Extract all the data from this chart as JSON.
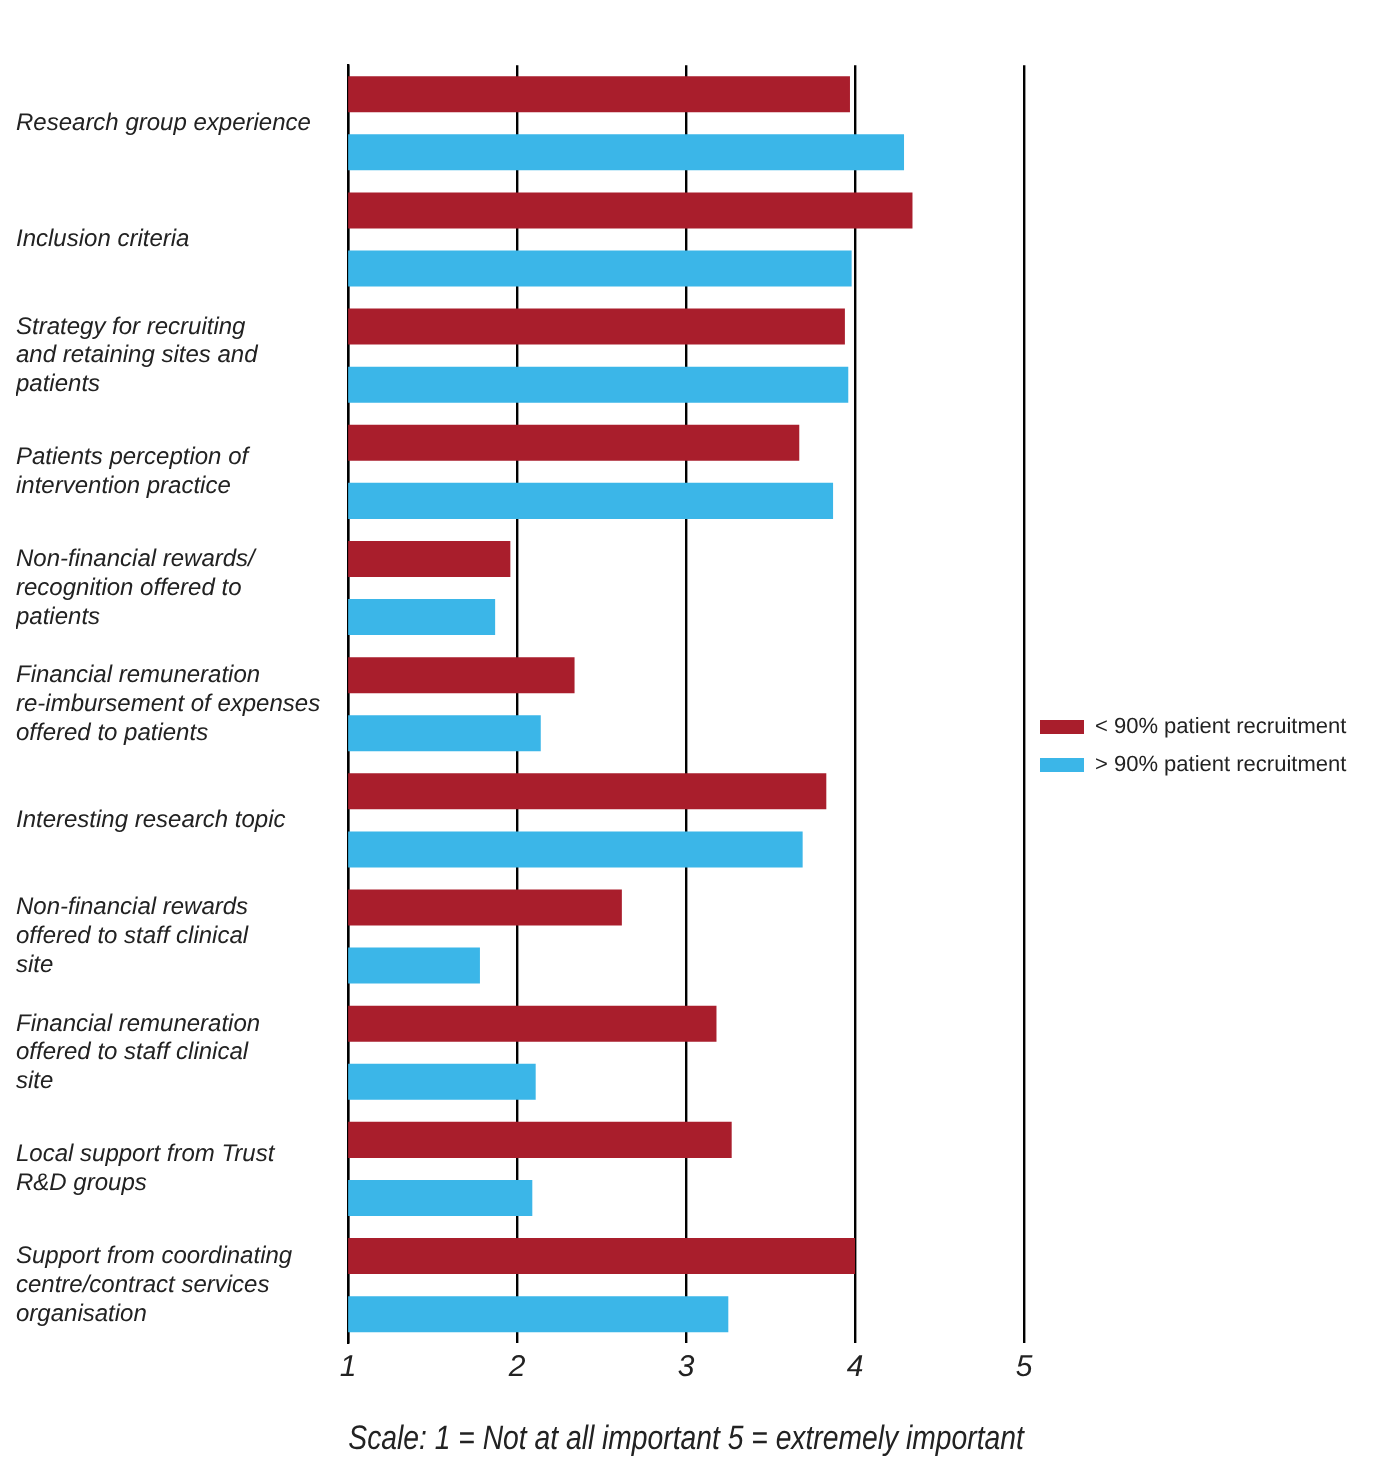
{
  "chart_data": {
    "type": "bar",
    "orientation": "horizontal",
    "xlabel": "Scale: 1 = Not at all important 5 = extremely important",
    "categories": [
      "Research group experience",
      "Inclusion criteria",
      "Strategy for recruiting and retaining sites and patients",
      "Patients perception of intervention practice",
      "Non-financial rewards/ recognition offered to patients",
      "Financial remuneration re-imbursement of expenses offered to patients",
      "Interesting research topic",
      "Non-financial rewards offered to staff clinical site",
      "Financial remuneration offered to staff clinical site",
      "Local support from Trust R&D groups",
      "Support from coordinating centre/contract services organisation"
    ],
    "series": [
      {
        "name": "< 90% patient recruitment",
        "color": "#a91e2c",
        "values": [
          3.97,
          4.34,
          3.94,
          3.67,
          1.96,
          2.34,
          3.83,
          2.62,
          3.18,
          3.27,
          4.0
        ]
      },
      {
        "name": "> 90% patient recruitment",
        "color": "#3bb6e8",
        "values": [
          4.29,
          3.98,
          3.96,
          3.87,
          1.87,
          2.14,
          3.69,
          1.78,
          2.11,
          2.09,
          3.25
        ]
      }
    ],
    "xlim": [
      1,
      5
    ],
    "xticks": [
      1,
      2,
      3,
      4,
      5
    ],
    "grid": "x",
    "legend": "right"
  }
}
